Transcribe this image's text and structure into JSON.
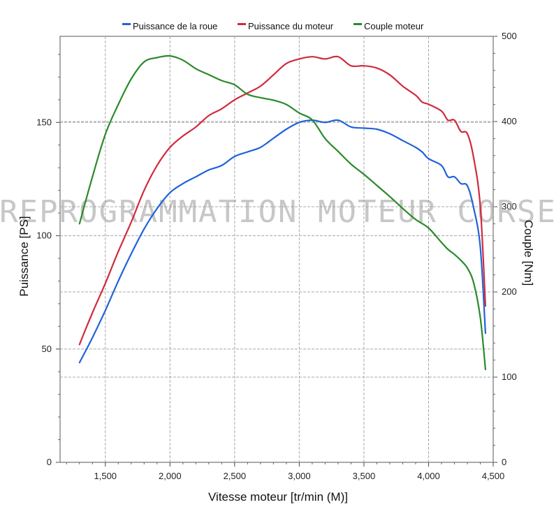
{
  "watermark": "REPROGRAMMATION MOTEUR CORSE",
  "chart_data": {
    "type": "line",
    "xlabel": "Vitesse moteur [tr/min (M)]",
    "ylabel_left": "Puissance [PS]",
    "ylabel_right": "Couple [Nm]",
    "xlim": [
      1150,
      4500
    ],
    "ylim_left": [
      0,
      188
    ],
    "ylim_right": [
      0,
      500
    ],
    "x_ticks": [
      1500,
      2000,
      2500,
      3000,
      3500,
      4000,
      4500
    ],
    "x_tick_labels": [
      "1,500",
      "2,000",
      "2,500",
      "3,000",
      "3,500",
      "4,000",
      "4,500"
    ],
    "y_left_ticks": [
      0,
      50,
      100,
      150
    ],
    "y_left_tick_labels": [
      "0",
      "50",
      "100",
      "150"
    ],
    "y_right_ticks": [
      0,
      100,
      200,
      300,
      400,
      500
    ],
    "y_right_tick_labels": [
      "0",
      "100",
      "200",
      "300",
      "400",
      "500"
    ],
    "grid": true,
    "legend_position": "top-center",
    "series": [
      {
        "name": "Puissance de la roue",
        "color": "#1f63d9",
        "axis": "left",
        "points": [
          [
            1300,
            44
          ],
          [
            1400,
            55
          ],
          [
            1500,
            67
          ],
          [
            1600,
            80
          ],
          [
            1700,
            92
          ],
          [
            1800,
            103
          ],
          [
            1900,
            112
          ],
          [
            2000,
            119
          ],
          [
            2100,
            123
          ],
          [
            2200,
            126
          ],
          [
            2300,
            129
          ],
          [
            2400,
            131
          ],
          [
            2500,
            135
          ],
          [
            2600,
            137
          ],
          [
            2700,
            139
          ],
          [
            2800,
            143
          ],
          [
            2900,
            147
          ],
          [
            3000,
            150
          ],
          [
            3100,
            151
          ],
          [
            3200,
            150
          ],
          [
            3300,
            151
          ],
          [
            3400,
            148
          ],
          [
            3500,
            147.5
          ],
          [
            3600,
            147
          ],
          [
            3700,
            145
          ],
          [
            3800,
            142
          ],
          [
            3900,
            139
          ],
          [
            3950,
            137
          ],
          [
            4000,
            134
          ],
          [
            4100,
            131
          ],
          [
            4150,
            126
          ],
          [
            4200,
            126
          ],
          [
            4250,
            123
          ],
          [
            4300,
            122
          ],
          [
            4350,
            112
          ],
          [
            4400,
            95
          ],
          [
            4440,
            57
          ]
        ]
      },
      {
        "name": "Puissance du moteur",
        "color": "#d12a3d",
        "axis": "left",
        "points": [
          [
            1300,
            52
          ],
          [
            1400,
            66
          ],
          [
            1500,
            79
          ],
          [
            1600,
            93
          ],
          [
            1700,
            106
          ],
          [
            1800,
            120
          ],
          [
            1900,
            131
          ],
          [
            2000,
            139
          ],
          [
            2100,
            144
          ],
          [
            2200,
            148
          ],
          [
            2300,
            153
          ],
          [
            2400,
            156
          ],
          [
            2500,
            160
          ],
          [
            2600,
            163
          ],
          [
            2700,
            166
          ],
          [
            2800,
            171
          ],
          [
            2900,
            176
          ],
          [
            3000,
            178
          ],
          [
            3100,
            179
          ],
          [
            3200,
            178
          ],
          [
            3300,
            179
          ],
          [
            3400,
            175
          ],
          [
            3500,
            175
          ],
          [
            3600,
            174
          ],
          [
            3700,
            171
          ],
          [
            3800,
            166
          ],
          [
            3900,
            162
          ],
          [
            3950,
            159
          ],
          [
            4000,
            158
          ],
          [
            4100,
            155
          ],
          [
            4150,
            151
          ],
          [
            4200,
            151
          ],
          [
            4250,
            146
          ],
          [
            4300,
            145
          ],
          [
            4350,
            134
          ],
          [
            4400,
            113
          ],
          [
            4440,
            69
          ]
        ]
      },
      {
        "name": "Couple moteur",
        "color": "#2a8a2a",
        "axis": "right",
        "points": [
          [
            1300,
            280
          ],
          [
            1400,
            335
          ],
          [
            1500,
            385
          ],
          [
            1600,
            420
          ],
          [
            1700,
            450
          ],
          [
            1800,
            470
          ],
          [
            1900,
            475
          ],
          [
            2000,
            477
          ],
          [
            2100,
            472
          ],
          [
            2200,
            462
          ],
          [
            2300,
            455
          ],
          [
            2400,
            448
          ],
          [
            2500,
            443
          ],
          [
            2600,
            432
          ],
          [
            2700,
            428
          ],
          [
            2800,
            425
          ],
          [
            2900,
            420
          ],
          [
            3000,
            410
          ],
          [
            3100,
            402
          ],
          [
            3200,
            380
          ],
          [
            3300,
            365
          ],
          [
            3400,
            350
          ],
          [
            3500,
            338
          ],
          [
            3600,
            325
          ],
          [
            3700,
            312
          ],
          [
            3800,
            298
          ],
          [
            3900,
            285
          ],
          [
            4000,
            275
          ],
          [
            4100,
            258
          ],
          [
            4150,
            250
          ],
          [
            4200,
            244
          ],
          [
            4250,
            237
          ],
          [
            4300,
            228
          ],
          [
            4350,
            210
          ],
          [
            4400,
            170
          ],
          [
            4440,
            109
          ]
        ]
      }
    ]
  }
}
